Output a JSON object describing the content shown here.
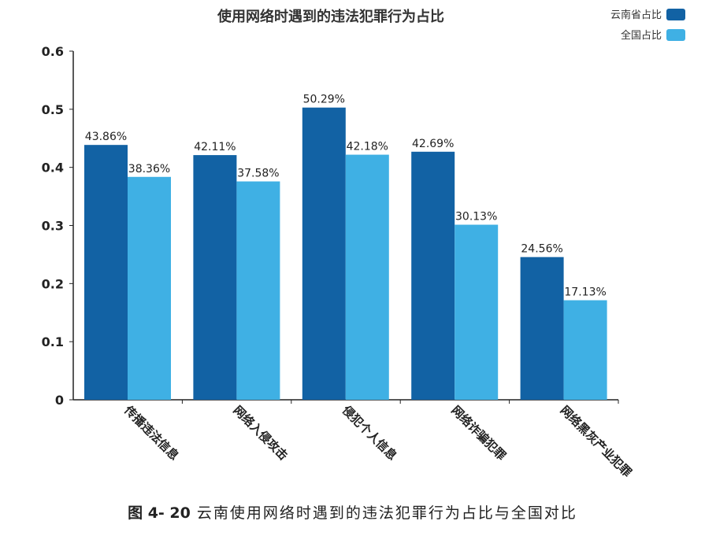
{
  "chart_data": {
    "type": "bar",
    "title": "使用网络时遇到的违法犯罪行为占比",
    "categories": [
      "传播违法信息",
      "网络入侵攻击",
      "侵犯个人信息",
      "网络诈骗犯罪",
      "网络黑灰产业犯罪"
    ],
    "series": [
      {
        "name": "云南省占比",
        "color": "#1262a4",
        "values": [
          0.4386,
          0.4211,
          0.5029,
          0.4269,
          0.2456
        ],
        "labels": [
          "43.86%",
          "42.11%",
          "50.29%",
          "42.69%",
          "24.56%"
        ]
      },
      {
        "name": "全国占比",
        "color": "#3fb0e4",
        "values": [
          0.3836,
          0.3758,
          0.4218,
          0.3013,
          0.1713
        ],
        "labels": [
          "38.36%",
          "37.58%",
          "42.18%",
          "30.13%",
          "17.13%"
        ]
      }
    ],
    "yticks": [
      "0",
      "0.1",
      "0.2",
      "0.3",
      "0.4",
      "0.5",
      "0.6"
    ],
    "ylim": [
      0,
      0.6
    ],
    "grid": false,
    "legend": "top-right"
  },
  "caption": {
    "fig_no": "图 4- 20",
    "text": "云南使用网络时遇到的违法犯罪行为占比与全国对比"
  }
}
